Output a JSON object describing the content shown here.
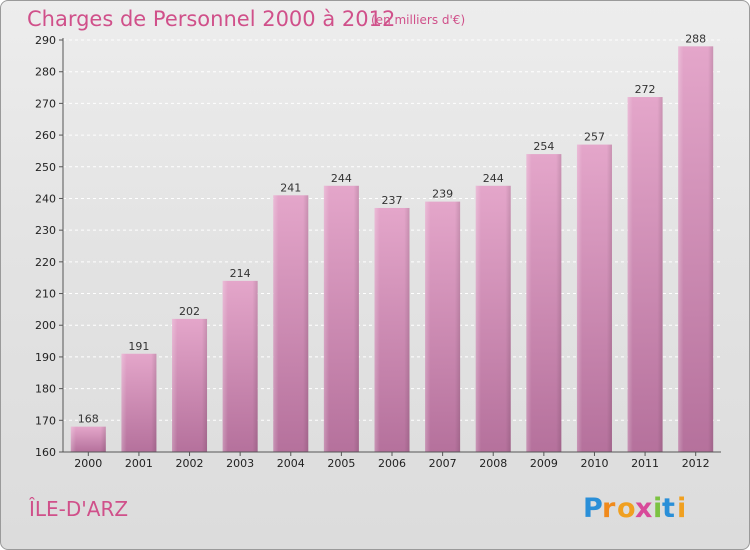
{
  "title": "Charges de Personnel 2000 à 2012",
  "subtitle": "(en milliers d'€)",
  "place": "ÎLE-D'ARZ",
  "logo_text": "Proxiti",
  "colors": {
    "title": "#d0508a",
    "bar_top": "#e3a3c8",
    "bar_bottom": "#b8739e",
    "grid": "#ffffff"
  },
  "chart_data": {
    "type": "bar",
    "title": "Charges de Personnel 2000 à 2012",
    "subtitle": "(en milliers d'€)",
    "xlabel": "",
    "ylabel": "",
    "categories": [
      "2000",
      "2001",
      "2002",
      "2003",
      "2004",
      "2005",
      "2006",
      "2007",
      "2008",
      "2009",
      "2010",
      "2011",
      "2012"
    ],
    "values": [
      168,
      191,
      202,
      214,
      241,
      244,
      237,
      239,
      244,
      254,
      257,
      272,
      288
    ],
    "ylim": [
      160,
      290
    ],
    "yticks": [
      160,
      170,
      180,
      190,
      200,
      210,
      220,
      230,
      240,
      250,
      260,
      270,
      280,
      290
    ],
    "grid": "horizontal dashed",
    "legend": "none"
  }
}
